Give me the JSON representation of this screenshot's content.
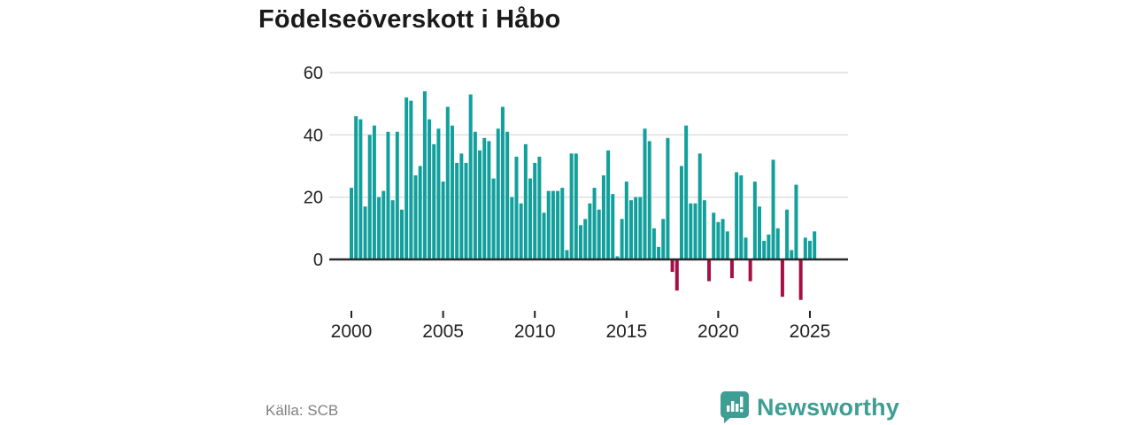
{
  "title": "Födelseöverskott i Håbo",
  "footer": {
    "source": "Källa: SCB",
    "brand": "Newsworthy"
  },
  "colors": {
    "bar_positive": "#12a09d",
    "bar_negative": "#a60f45",
    "gridline": "#dcdcdc",
    "zero_line": "#2b2b2b",
    "axis_text": "#222222",
    "title_text": "#1a1a1a",
    "source_text": "#808080",
    "brand_teal": "#3f9e93"
  },
  "chart_data": {
    "type": "bar",
    "title": "Födelseöverskott i Håbo",
    "frequency": "quarterly",
    "x_start_year": 2000,
    "bars_per_year": 4,
    "xlabel": "",
    "ylabel": "",
    "ylim": [
      -17,
      62
    ],
    "yticks": [
      0,
      20,
      40,
      60
    ],
    "xticks": [
      2000,
      2005,
      2010,
      2015,
      2020,
      2025
    ],
    "grid": "horizontal",
    "legend": "none",
    "values": [
      23,
      46,
      45,
      17,
      40,
      43,
      20,
      22,
      41,
      19,
      41,
      16,
      52,
      51,
      27,
      30,
      54,
      45,
      37,
      42,
      25,
      49,
      43,
      31,
      34,
      31,
      53,
      41,
      35,
      39,
      38,
      26,
      42,
      49,
      41,
      20,
      33,
      18,
      37,
      26,
      31,
      33,
      15,
      22,
      22,
      22,
      23,
      3,
      34,
      34,
      11,
      13,
      18,
      23,
      16,
      27,
      35,
      21,
      1,
      13,
      25,
      19,
      20,
      20,
      42,
      38,
      10,
      4,
      13,
      39,
      -4,
      -10,
      30,
      43,
      18,
      18,
      34,
      19,
      -7,
      15,
      12,
      13,
      9,
      -6,
      28,
      27,
      7,
      -7,
      25,
      17,
      6,
      8,
      32,
      10,
      -12,
      16,
      3,
      24,
      -13,
      7,
      6,
      9
    ]
  }
}
